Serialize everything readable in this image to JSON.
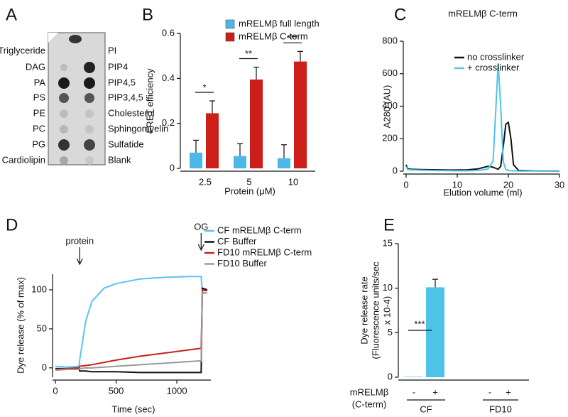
{
  "chart_data": [
    {
      "type": "dot-blot",
      "panel_label": "A",
      "left_labels": [
        "Triglyceride",
        "DAG",
        "PA",
        "PS",
        "PE",
        "PC",
        "PG",
        "Cardiolipin"
      ],
      "left_colors": [
        "#111111",
        "#111111",
        "#c0282a",
        "#c0282a",
        "#111111",
        "#111111",
        "#111111",
        "#c0282a"
      ],
      "right_labels": [
        "PI",
        "PIP4",
        "PIP4,5",
        "PIP3,4,5",
        "Cholesterol",
        "Sphingomyelin",
        "Sulfatide",
        "Blank"
      ],
      "right_colors": [
        "#111111",
        "#c0282a",
        "#c0282a",
        "#c0282a",
        "#111111",
        "#111111",
        "#c0282a",
        "#111111"
      ]
    },
    {
      "type": "bar",
      "panel_label": "B",
      "x_label": "Protein (μM)",
      "y_label": "FRET efficiency",
      "categories": [
        "2.5",
        "5",
        "10"
      ],
      "series": [
        {
          "name": "mRELMβ full length",
          "color": "#4db8e8",
          "values": [
            0.07,
            0.055,
            0.045
          ],
          "errors": [
            0.055,
            0.055,
            0.06
          ]
        },
        {
          "name": "mRELMβ C-term",
          "color": "#cc1f1a",
          "values": [
            0.245,
            0.395,
            0.475
          ],
          "errors": [
            0.055,
            0.055,
            0.045
          ]
        }
      ],
      "significance": [
        "*",
        "**",
        "***"
      ],
      "ylim": [
        0,
        0.6
      ],
      "yticks": [
        0,
        0.2,
        0.4,
        0.6
      ]
    },
    {
      "type": "line",
      "panel_label": "C",
      "title": "mRELMβ C-term",
      "x_label": "Elution volume (ml)",
      "y_label": "A280 (AU)",
      "x": [
        0,
        0.3,
        1,
        3,
        6,
        9,
        12,
        14,
        15,
        16,
        17,
        17.5,
        18,
        18.5,
        19,
        19.5,
        20,
        20.5,
        21,
        22,
        25,
        30
      ],
      "series": [
        {
          "name": "no crosslinker",
          "color": "#111111",
          "values": [
            40,
            15,
            12,
            10,
            8,
            7,
            8,
            14,
            22,
            30,
            25,
            18,
            12,
            30,
            150,
            290,
            300,
            200,
            40,
            5,
            2,
            1
          ]
        },
        {
          "name": "+ crosslinker",
          "color": "#4fc3e8",
          "values": [
            30,
            10,
            8,
            6,
            4,
            3,
            3,
            5,
            8,
            14,
            60,
            350,
            665,
            400,
            60,
            10,
            5,
            3,
            2,
            1,
            1,
            1
          ]
        }
      ],
      "xlim": [
        0,
        30
      ],
      "xticks": [
        0,
        10,
        20,
        30
      ],
      "ylim": [
        0,
        800
      ],
      "yticks": [
        0,
        200,
        400,
        600,
        800
      ]
    },
    {
      "type": "line",
      "panel_label": "D",
      "x_label": "Time (sec)",
      "y_label": "Dye release (% of max)",
      "x": [
        0,
        100,
        195,
        200,
        250,
        300,
        400,
        500,
        700,
        900,
        1100,
        1195,
        1200,
        1210,
        1230,
        1250
      ],
      "series": [
        {
          "name": "CF mRELMβ C-term",
          "color": "#5ec4ec",
          "values": [
            2,
            1,
            2,
            10,
            60,
            85,
            102,
            108,
            114,
            116,
            117,
            117,
            117,
            95,
            96,
            96
          ]
        },
        {
          "name": "CF Buffer",
          "color": "#111111",
          "values": [
            -1,
            -1,
            0,
            -4,
            -4,
            -5,
            -5,
            -5,
            -6,
            -6,
            -6,
            -6,
            -6,
            102,
            101,
            100
          ]
        },
        {
          "name": "FD10 mRELMβ C-term",
          "color": "#c8201c",
          "values": [
            -2,
            -1,
            0,
            2,
            3,
            4,
            7,
            10,
            15,
            19,
            23,
            25,
            25,
            100,
            99,
            99
          ]
        },
        {
          "name": "FD10 Buffer",
          "color": "#9a9a9a",
          "values": [
            -3,
            -2,
            -2,
            -1,
            0,
            0,
            1,
            2,
            4,
            6,
            8,
            9,
            9,
            97,
            96,
            96
          ]
        }
      ],
      "annotations": [
        {
          "text": "protein",
          "x": 200
        },
        {
          "text": "OG",
          "x": 1200
        }
      ],
      "xlim": [
        0,
        1280
      ],
      "xticks": [
        0,
        500,
        1000
      ],
      "ylim": [
        -12,
        120
      ],
      "yticks": [
        0,
        50,
        100
      ]
    },
    {
      "type": "bar",
      "panel_label": "E",
      "y_label": [
        "Dye release rate",
        "(Fluorescence units/sec",
        "x 10-4)"
      ],
      "row_label": [
        "mRELMβ",
        "(C-term)"
      ],
      "categories": [
        "-",
        "+",
        "-",
        "+"
      ],
      "groups": [
        "CF",
        "FD10"
      ],
      "series": [
        {
          "color": "#4fc3e8",
          "values": [
            0.05,
            10.1,
            0,
            0
          ],
          "errors": [
            0,
            0.9,
            0,
            0
          ]
        }
      ],
      "significance": [
        "***"
      ],
      "ylim": [
        0,
        15
      ],
      "yticks": [
        0,
        5,
        10,
        15
      ]
    }
  ]
}
